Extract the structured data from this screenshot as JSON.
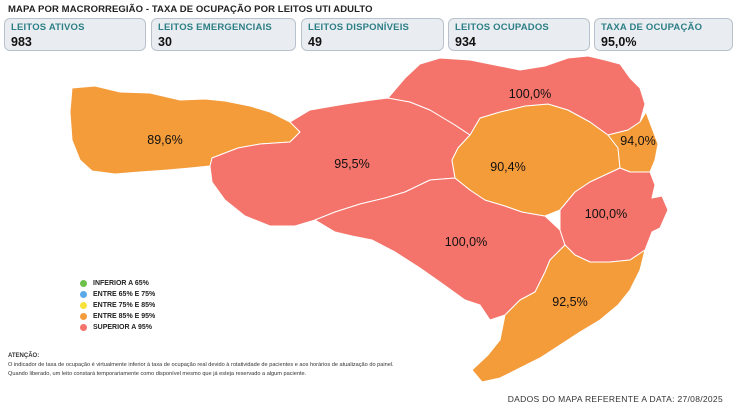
{
  "title": "MAPA POR MACRORREGIÃO - TAXA DE OCUPAÇÃO POR LEITOS UTI ADULTO",
  "cards": [
    {
      "label": "LEITOS ATIVOS",
      "value": "983"
    },
    {
      "label": "LEITOS EMERGENCIAIS",
      "value": "30"
    },
    {
      "label": "LEITOS DISPONÍVEIS",
      "value": "49"
    },
    {
      "label": "LEITOS OCUPADOS",
      "value": "934"
    },
    {
      "label": "TAXA DE OCUPAÇÃO",
      "value": "95,0%"
    }
  ],
  "regions": [
    {
      "label": "89,6%",
      "color": "#f49b3a"
    },
    {
      "label": "95,5%",
      "color": "#f4736a"
    },
    {
      "label": "100,0%",
      "color": "#f4736a"
    },
    {
      "label": "90,4%",
      "color": "#f49b3a"
    },
    {
      "label": "100,0%",
      "color": "#f4736a"
    },
    {
      "label": "94,0%",
      "color": "#f49b3a"
    },
    {
      "label": "100,0%",
      "color": "#f4736a"
    },
    {
      "label": "92,5%",
      "color": "#f49b3a"
    }
  ],
  "legend": [
    {
      "label": "INFERIOR A 65%",
      "color": "#6cbf4b"
    },
    {
      "label": "ENTRE 65% E 75%",
      "color": "#5aa9e6"
    },
    {
      "label": "ENTRE 75% E 85%",
      "color": "#f7e13a"
    },
    {
      "label": "ENTRE 85% E 95%",
      "color": "#f49b3a"
    },
    {
      "label": "SUPERIOR A 95%",
      "color": "#f4736a"
    }
  ],
  "notice": {
    "title": "ATENÇÃO:",
    "line1": "O indicador de taxa de ocupação é virtualmente inferior à taxa de ocupação real devido à rotatividade de pacientes e aos horários de atualização do painel.",
    "line2": "Quando liberado, um leito constará temporariamente como disponível mesmo que já esteja reservado a algum paciente."
  },
  "footer": {
    "date_text": "DADOS DO MAPA REFERENTE A DATA: 27/08/2025"
  }
}
